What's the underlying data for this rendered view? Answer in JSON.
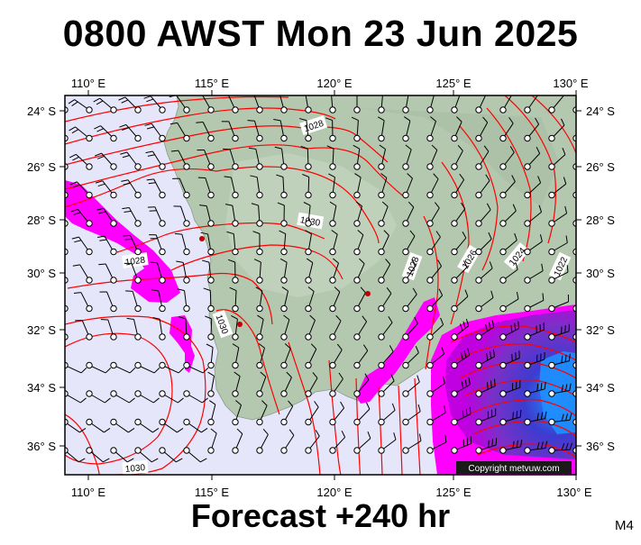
{
  "title": "0800 AWST Mon 23 Jun 2025",
  "footer": "Forecast +240 hr",
  "model_code": "M4",
  "copyright": "Copyright metvuw.com",
  "longitude_labels": [
    "110° E",
    "115° E",
    "120° E",
    "125° E",
    "130° E"
  ],
  "latitude_labels": [
    "24° S",
    "26° S",
    "28° S",
    "30° S",
    "32° S",
    "34° S",
    "36° S"
  ],
  "isobar_labels": [
    "1028",
    "1030",
    "1028",
    "1030",
    "1028",
    "1026",
    "1024",
    "1022",
    "1030"
  ],
  "colors": {
    "ocean": "#e6e6fa",
    "land": "#b4c8b0",
    "isobar": "#ff0000",
    "rain_light": "#ff00ff",
    "rain_heavy": "#6a3cc8",
    "rain_core": "#1e90ff",
    "station": "#c00000"
  }
}
